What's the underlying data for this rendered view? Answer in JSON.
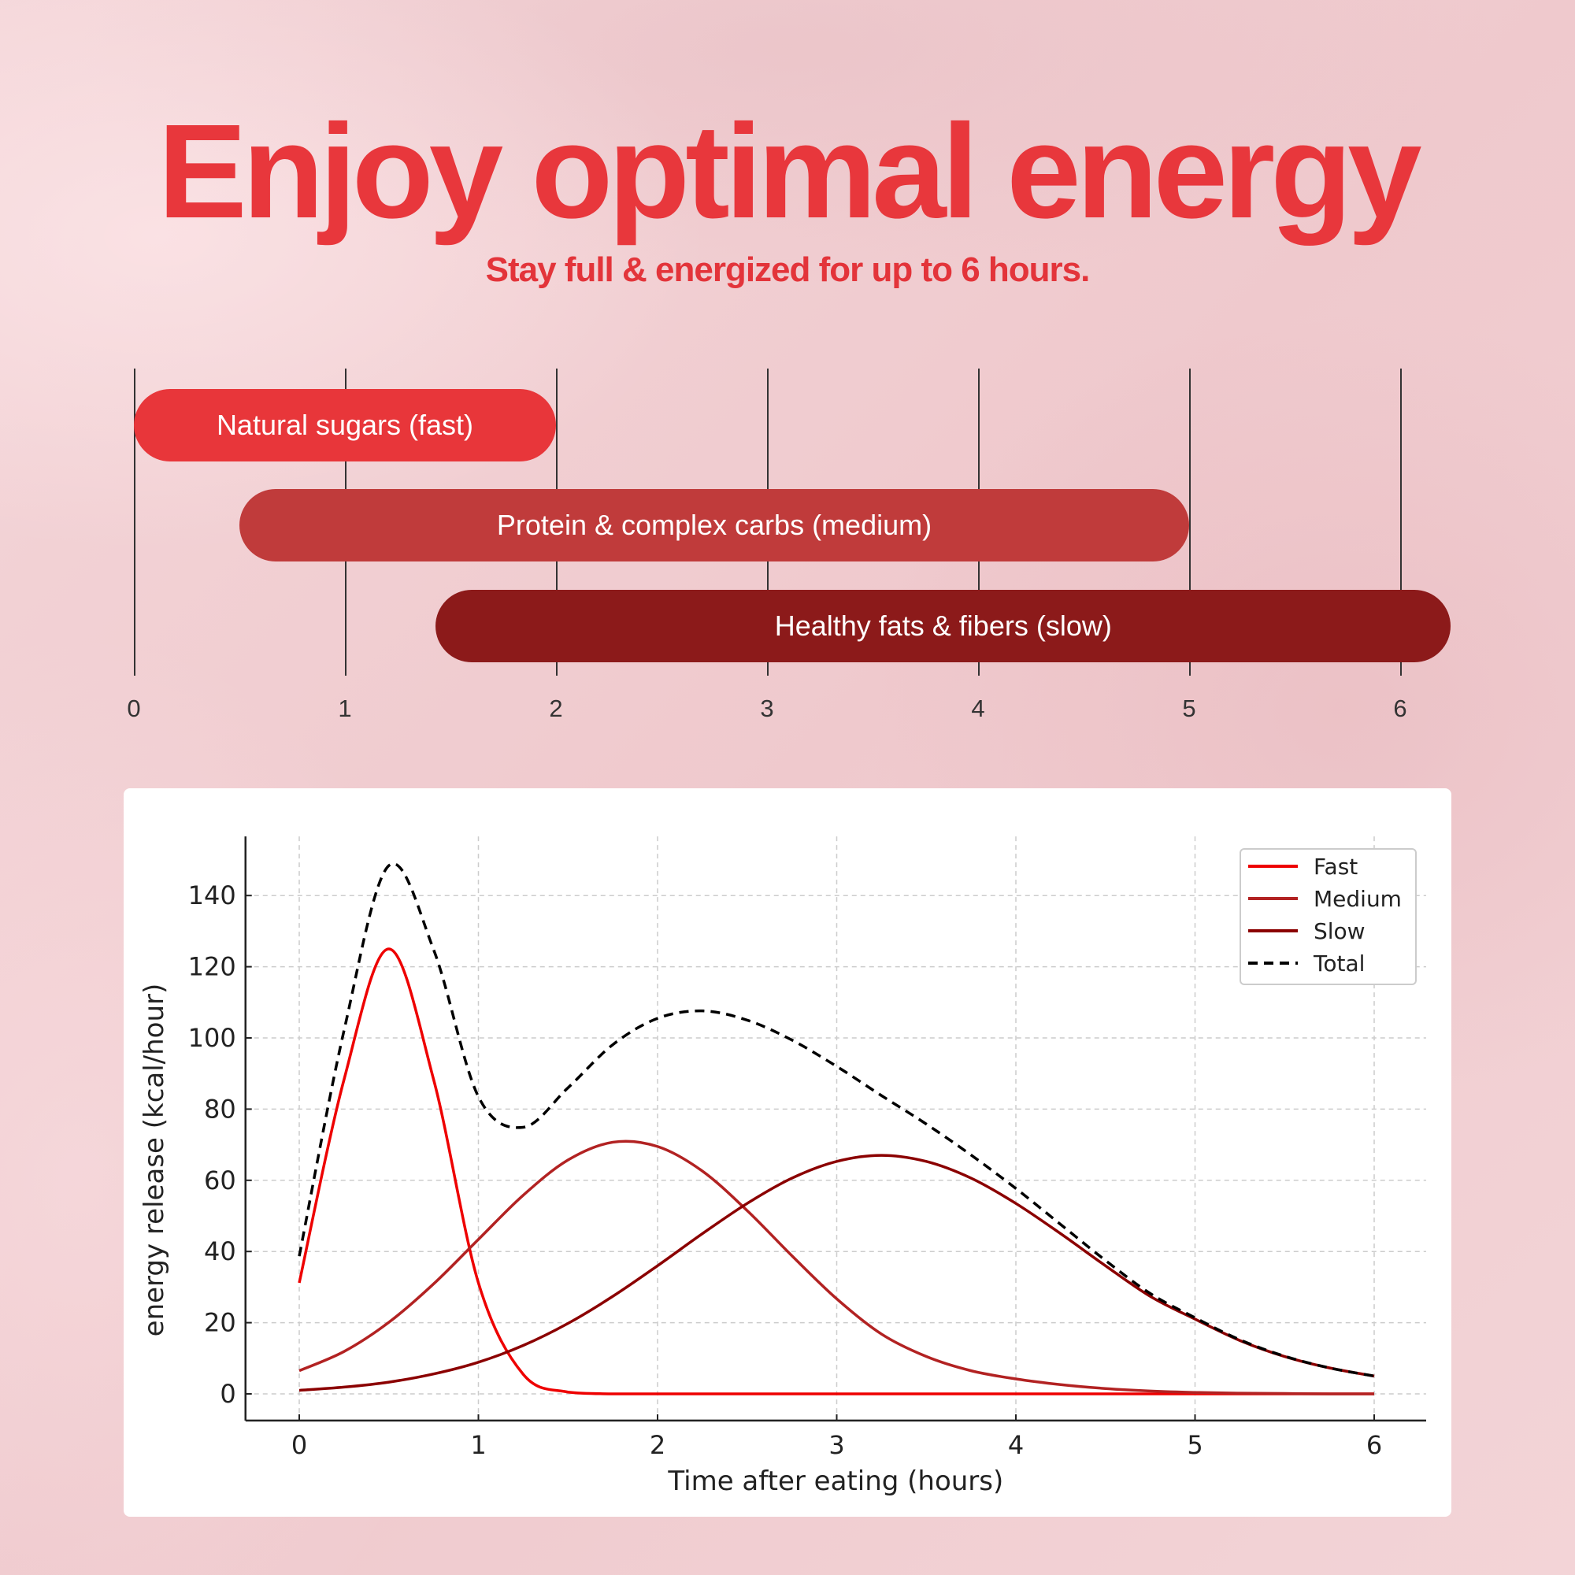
{
  "header": {
    "title": "Enjoy optimal energy",
    "subtitle": "Stay full & energized for up to 6 hours."
  },
  "timeline": {
    "ticks": [
      "0",
      "1",
      "2",
      "3",
      "4",
      "5",
      "6"
    ],
    "bars": [
      {
        "label": "Natural sugars (fast)",
        "start": 0,
        "end": 2,
        "color": "#e8363a"
      },
      {
        "label": "Protein & complex carbs (medium)",
        "start": 0.5,
        "end": 5,
        "color": "#c03b3b"
      },
      {
        "label": "Healthy fats & fibers (slow)",
        "start": 1.43,
        "end": 6.24,
        "color": "#8c1a1a"
      }
    ]
  },
  "chart_data": {
    "type": "line",
    "xlabel": "Time after eating (hours)",
    "ylabel": "energy release (kcal/hour)",
    "xlim": [
      -0.3,
      6.29
    ],
    "ylim": [
      -7.5,
      156.6
    ],
    "xticks": [
      0,
      1,
      2,
      3,
      4,
      5,
      6
    ],
    "yticks": [
      0,
      20,
      40,
      60,
      80,
      100,
      120,
      140
    ],
    "grid": true,
    "legend_position": "top-right",
    "x": [
      0,
      0.25,
      0.5,
      0.75,
      1,
      1.25,
      1.5,
      1.75,
      2,
      2.25,
      2.5,
      2.75,
      3,
      3.25,
      3.5,
      3.75,
      4,
      4.25,
      4.5,
      4.75,
      5,
      5.25,
      5.5,
      5.75,
      6
    ],
    "series": [
      {
        "name": "Fast",
        "color": "#ee0000",
        "dash": false,
        "values": [
          31.2,
          88.3,
          125,
          88.3,
          31.2,
          5.5,
          0.5,
          0,
          0,
          0,
          0,
          0,
          0,
          0,
          0,
          0,
          0,
          0,
          0,
          0,
          0,
          0,
          0,
          0,
          0
        ]
      },
      {
        "name": "Medium",
        "color": "#b22222",
        "dash": false,
        "values": [
          6.5,
          11.9,
          20.1,
          30.9,
          43.4,
          55.8,
          65.7,
          70.7,
          69.5,
          62.6,
          51.5,
          38.8,
          26.7,
          16.8,
          10.5,
          6.5,
          4.2,
          2.6,
          1.5,
          0.8,
          0.4,
          0.2,
          0.1,
          0,
          0
        ]
      },
      {
        "name": "Slow",
        "color": "#8b0000",
        "dash": false,
        "values": [
          1.0,
          1.9,
          3.3,
          5.6,
          8.9,
          13.6,
          19.8,
          27.4,
          36,
          45,
          53.5,
          60.6,
          65.3,
          67,
          65.3,
          60.6,
          53.5,
          45,
          36,
          27.4,
          21,
          15,
          10.5,
          7.3,
          5
        ]
      },
      {
        "name": "Total",
        "color": "#000000",
        "dash": true,
        "values": [
          38.7,
          102.1,
          148.4,
          124.8,
          83.5,
          74.9,
          86.0,
          98.1,
          105.5,
          107.6,
          105,
          99.4,
          92,
          83.8,
          75.8,
          67.1,
          57.7,
          47.6,
          37.5,
          28.2,
          21.4,
          15.2,
          10.6,
          7.3,
          5
        ]
      }
    ]
  }
}
